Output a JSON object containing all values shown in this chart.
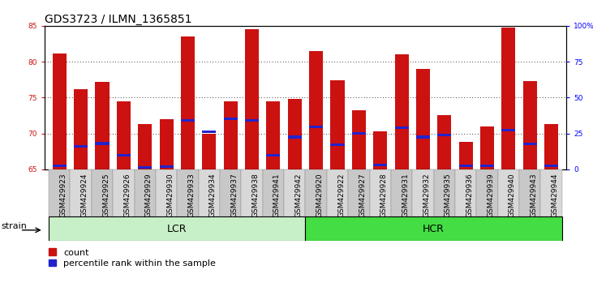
{
  "title": "GDS3723 / ILMN_1365851",
  "samples": [
    "GSM429923",
    "GSM429924",
    "GSM429925",
    "GSM429926",
    "GSM429929",
    "GSM429930",
    "GSM429933",
    "GSM429934",
    "GSM429937",
    "GSM429938",
    "GSM429941",
    "GSM429942",
    "GSM429920",
    "GSM429922",
    "GSM429927",
    "GSM429928",
    "GSM429931",
    "GSM429932",
    "GSM429935",
    "GSM429936",
    "GSM429939",
    "GSM429940",
    "GSM429943",
    "GSM429944"
  ],
  "bar_values": [
    81.1,
    76.2,
    77.2,
    74.5,
    71.3,
    72.0,
    83.5,
    70.0,
    74.5,
    84.5,
    74.5,
    74.8,
    81.5,
    77.4,
    73.2,
    70.3,
    81.0,
    79.0,
    72.5,
    68.8,
    71.0,
    84.8,
    77.3,
    71.3
  ],
  "blue_marker_values": [
    65.5,
    68.2,
    68.6,
    67.0,
    65.3,
    65.4,
    71.8,
    70.2,
    72.0,
    71.8,
    67.0,
    69.5,
    70.9,
    68.4,
    70.0,
    65.6,
    70.8,
    69.5,
    69.8,
    65.5,
    65.5,
    70.5,
    68.5,
    65.5
  ],
  "groups": [
    {
      "label": "LCR",
      "start": 0,
      "end": 11,
      "color": "#c8f0c8"
    },
    {
      "label": "HCR",
      "start": 12,
      "end": 23,
      "color": "#44dd44"
    }
  ],
  "ymin": 65,
  "ymax": 85,
  "yticks": [
    65,
    70,
    75,
    80,
    85
  ],
  "grid_values": [
    70,
    75,
    80
  ],
  "right_yticks": [
    0,
    25,
    50,
    75,
    100
  ],
  "right_yticklabels": [
    "0",
    "25",
    "50",
    "75",
    "100%"
  ],
  "bar_color": "#cc1111",
  "blue_color": "#2222cc",
  "bar_bottom": 65,
  "legend_count_label": "count",
  "legend_percentile_label": "percentile rank within the sample",
  "strain_label": "strain",
  "title_fontsize": 10,
  "tick_fontsize": 6.5,
  "group_label_fontsize": 9,
  "label_fontsize": 8
}
